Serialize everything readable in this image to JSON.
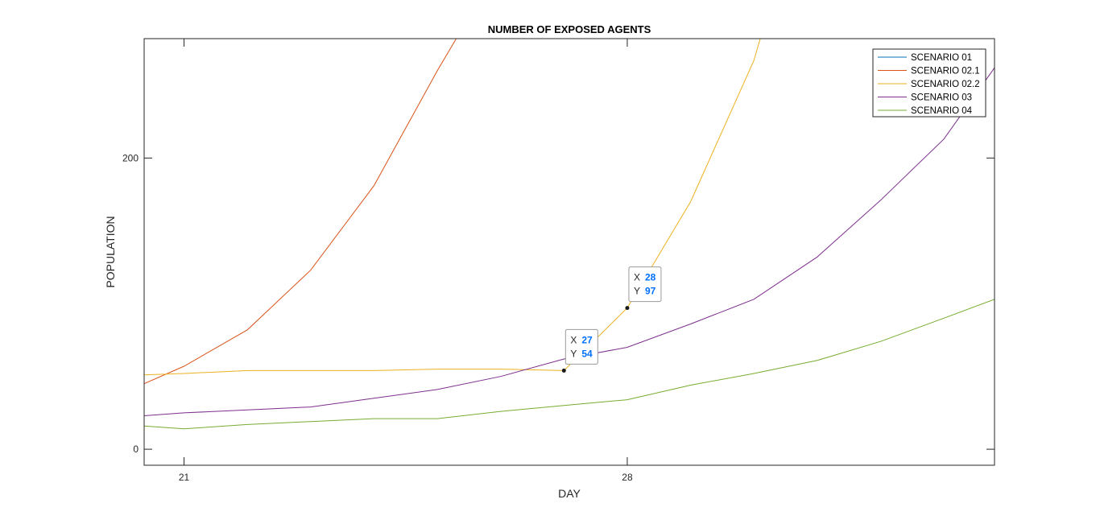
{
  "chart_data": {
    "type": "line",
    "title": "NUMBER OF EXPOSED AGENTS",
    "xlabel": "DAY",
    "ylabel": "POPULATION",
    "xlim": [
      20.37,
      33.8
    ],
    "ylim": [
      -11,
      282
    ],
    "xticks": [
      21,
      28
    ],
    "yticks": [
      0,
      200
    ],
    "grid": false,
    "legend_position": "top-right",
    "series": [
      {
        "name": "SCENARIO 01",
        "color": "#0072BD",
        "x": [],
        "y": []
      },
      {
        "name": "SCENARIO 02.1",
        "color": "#D95319",
        "x": [
          20.37,
          21,
          22,
          23,
          24,
          25,
          25.3
        ],
        "y": [
          45,
          57,
          82,
          123,
          181,
          260,
          282
        ]
      },
      {
        "name": "SCENARIO 02.2",
        "color": "#EDB120",
        "x": [
          20.37,
          21,
          22,
          23,
          24,
          25,
          26,
          27,
          28,
          29,
          30,
          30.1
        ],
        "y": [
          51,
          52,
          54,
          54,
          54,
          55,
          55,
          54,
          97,
          170,
          267,
          282
        ]
      },
      {
        "name": "SCENARIO 03",
        "color": "#7E2F8E",
        "x": [
          20.37,
          21,
          22,
          23,
          24,
          25,
          26,
          27,
          28,
          29,
          30,
          31,
          32,
          33,
          33.8
        ],
        "y": [
          23,
          25,
          27,
          29,
          35,
          41,
          50,
          62,
          70,
          86,
          103,
          132,
          171,
          213,
          262
        ]
      },
      {
        "name": "SCENARIO 04",
        "color": "#77AC30",
        "x": [
          20.37,
          21,
          22,
          23,
          24,
          25,
          26,
          27,
          28,
          29,
          30,
          31,
          32,
          33,
          33.8
        ],
        "y": [
          16,
          14,
          17,
          19,
          21,
          21,
          26,
          30,
          34,
          44,
          52,
          61,
          74,
          90,
          103
        ]
      }
    ],
    "datatips": [
      {
        "x_label": "X",
        "x_value": "27",
        "y_label": "Y",
        "y_value": "54",
        "x": 27,
        "y": 54
      },
      {
        "x_label": "X",
        "x_value": "28",
        "y_label": "Y",
        "y_value": "97",
        "x": 28,
        "y": 97
      }
    ],
    "datatip_value_color": "#0070FF"
  }
}
